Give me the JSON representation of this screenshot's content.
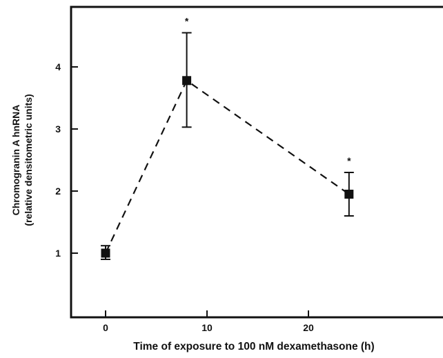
{
  "chart_data": {
    "type": "line",
    "title": "",
    "xlabel": "Time of exposure to 100 nM dexamethasone (h)",
    "ylabel_line1": "Chromogranin A hnRNA",
    "ylabel_line2": "(relative densitometric units)",
    "xlim": [
      -3,
      27
    ],
    "ylim": [
      0,
      5
    ],
    "x_ticks": [
      0,
      10,
      20
    ],
    "y_ticks": [
      1,
      2,
      3,
      4
    ],
    "grid": false,
    "series": [
      {
        "x": [
          0,
          8,
          24
        ],
        "y": [
          1.0,
          3.78,
          1.95
        ],
        "err_low": [
          0.9,
          3.03,
          1.6
        ],
        "err_high": [
          1.12,
          4.55,
          2.3
        ],
        "significance": [
          "",
          "*",
          "*"
        ]
      }
    ]
  },
  "style": {
    "ink": "#111111",
    "background": "#ffffff"
  }
}
